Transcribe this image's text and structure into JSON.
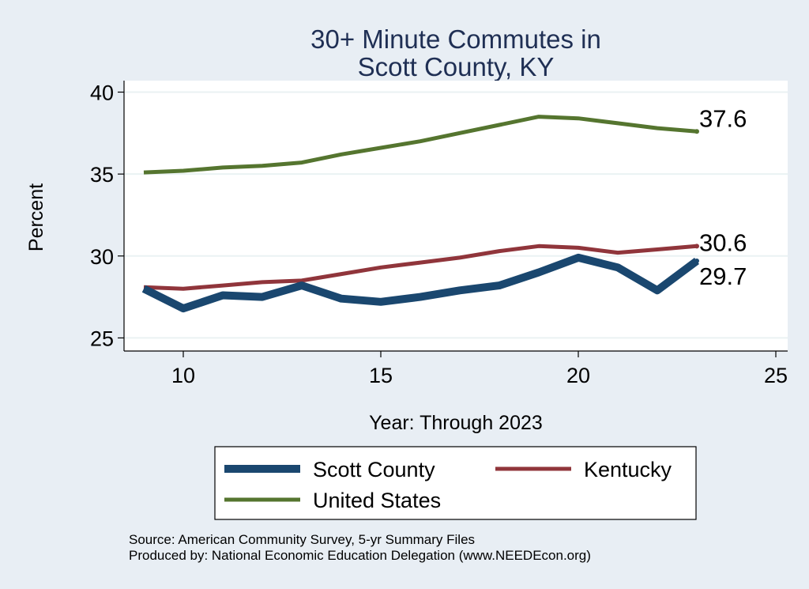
{
  "chart_data": {
    "type": "line",
    "title_lines": [
      "30+ Minute Commutes in",
      "Scott County, KY"
    ],
    "xlabel": "Year: Through 2023",
    "ylabel": "Percent",
    "xlim": [
      8.5,
      25.3
    ],
    "ylim": [
      24.2,
      40.7
    ],
    "x_ticks": [
      10,
      15,
      20,
      25
    ],
    "y_ticks": [
      25,
      30,
      35,
      40
    ],
    "grid": "horizontal",
    "legend_position": "bottom",
    "x": [
      9,
      10,
      11,
      12,
      13,
      14,
      15,
      16,
      17,
      18,
      19,
      20,
      21,
      22,
      23
    ],
    "series": [
      {
        "name": "Scott County",
        "color": "#1a476f",
        "values": [
          28.0,
          26.8,
          27.6,
          27.5,
          28.2,
          27.4,
          27.2,
          27.5,
          27.9,
          28.2,
          29.0,
          29.9,
          29.3,
          27.9,
          29.7
        ],
        "end_label": "29.7"
      },
      {
        "name": "Kentucky",
        "color": "#90353b",
        "values": [
          28.1,
          28.0,
          28.2,
          28.4,
          28.5,
          28.9,
          29.3,
          29.6,
          29.9,
          30.3,
          30.6,
          30.5,
          30.2,
          30.4,
          30.6
        ],
        "end_label": "30.6"
      },
      {
        "name": "United States",
        "color": "#55752f",
        "values": [
          35.1,
          35.2,
          35.4,
          35.5,
          35.7,
          36.2,
          36.6,
          37.0,
          37.5,
          38.0,
          38.5,
          38.4,
          38.1,
          37.8,
          37.6
        ],
        "end_label": "37.6"
      }
    ],
    "notes": [
      "Source: American Community Survey, 5-yr Summary Files",
      "Produced by: National Economic Education Delegation (www.NEEDEcon.org)"
    ]
  }
}
